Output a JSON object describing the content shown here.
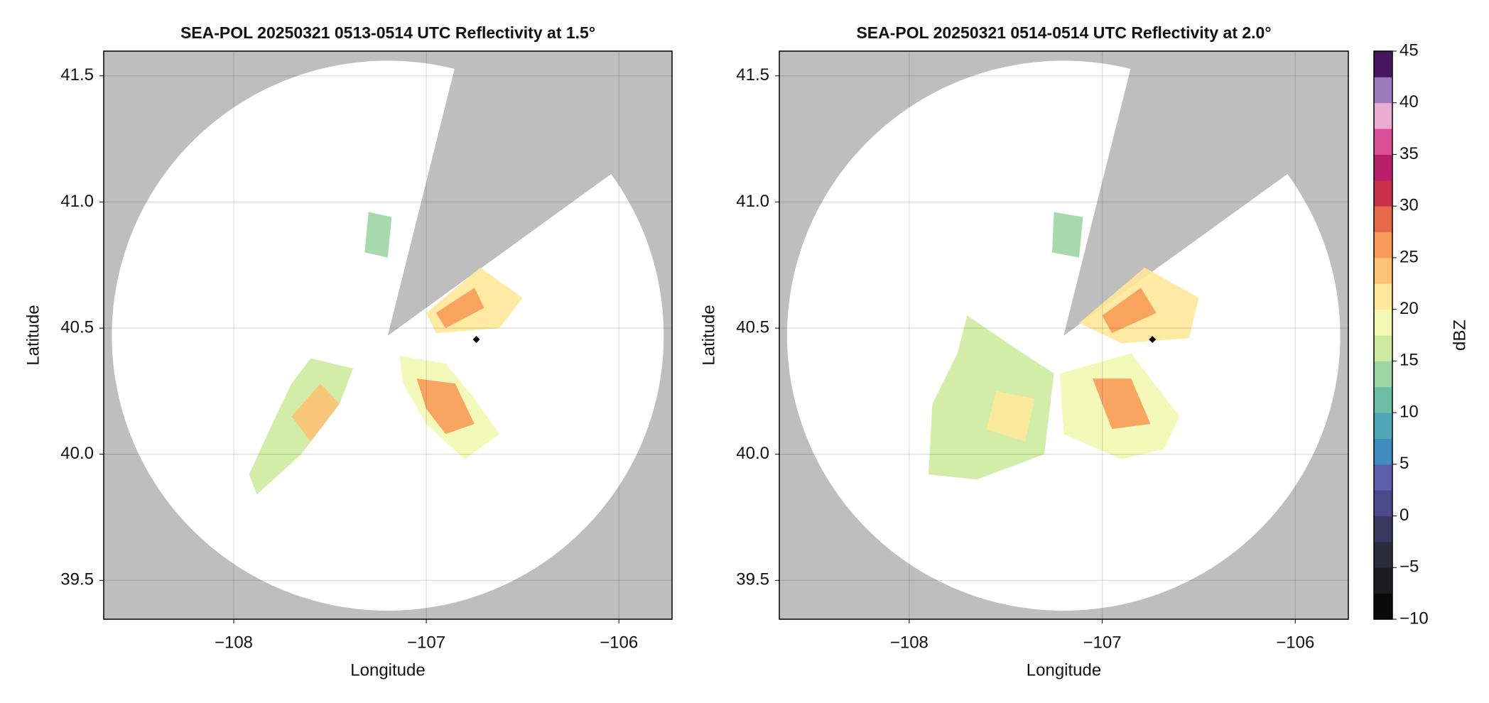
{
  "chart_data": [
    {
      "type": "radar",
      "title": "SEA-POL 20250321 0513-0514 UTC Reflectivity at 1.5°",
      "xlabel": "Longitude",
      "ylabel": "Latitude",
      "xlim": [
        -108.675,
        -105.724
      ],
      "ylim": [
        39.346,
        41.598
      ],
      "xticks": [
        {
          "value": -108,
          "label": "−108"
        },
        {
          "value": -107,
          "label": "−107"
        },
        {
          "value": -106,
          "label": "−106"
        }
      ],
      "yticks": [
        39.5,
        {
          "value": 40,
          "label": "40.0"
        },
        40.5,
        {
          "value": 41,
          "label": "41.0"
        },
        41.5
      ],
      "grid": true,
      "background": "#bebebe",
      "radar": {
        "lon": -107.2,
        "lat": 40.47,
        "range_km": 121,
        "blocked_azimuth": [
          14,
          54
        ]
      },
      "marker": {
        "lon": -106.74,
        "lat": 40.455,
        "color": "#000000"
      },
      "echoes": [
        {
          "lon": [
            -107.0,
            -106.72,
            -106.5,
            -106.62,
            -106.95
          ],
          "lat": [
            40.56,
            40.74,
            40.62,
            40.5,
            40.48
          ],
          "dbz": 20
        },
        {
          "lon": [
            -106.95,
            -106.75,
            -106.7,
            -106.9
          ],
          "lat": [
            40.56,
            40.66,
            40.58,
            40.5
          ],
          "dbz": 25
        },
        {
          "lon": [
            -107.14,
            -106.9,
            -106.75,
            -106.62,
            -106.8,
            -107.0,
            -107.12
          ],
          "lat": [
            40.39,
            40.36,
            40.22,
            40.08,
            39.98,
            40.12,
            40.28
          ],
          "dbz": 19
        },
        {
          "lon": [
            -107.05,
            -106.85,
            -106.75,
            -106.9,
            -107.0
          ],
          "lat": [
            40.3,
            40.28,
            40.12,
            40.08,
            40.18
          ],
          "dbz": 25
        },
        {
          "lon": [
            -107.6,
            -107.38,
            -107.45,
            -107.65,
            -107.88,
            -107.92,
            -107.8,
            -107.7
          ],
          "lat": [
            40.38,
            40.34,
            40.2,
            40.0,
            39.84,
            39.92,
            40.12,
            40.28
          ],
          "dbz": 16
        },
        {
          "lon": [
            -107.55,
            -107.45,
            -107.6,
            -107.7
          ],
          "lat": [
            40.28,
            40.2,
            40.05,
            40.15
          ],
          "dbz": 23
        },
        {
          "lon": [
            -107.3,
            -107.18,
            -107.2,
            -107.32
          ],
          "lat": [
            40.96,
            40.94,
            40.78,
            40.8
          ],
          "dbz": 13
        }
      ]
    },
    {
      "type": "radar",
      "title": "SEA-POL 20250321 0514-0514 UTC Reflectivity at 2.0°",
      "xlabel": "Longitude",
      "ylabel": "Latitude",
      "xlim": [
        -108.673,
        -105.725
      ],
      "ylim": [
        39.346,
        41.598
      ],
      "xticks": [
        {
          "value": -108,
          "label": "−108"
        },
        {
          "value": -107,
          "label": "−107"
        },
        {
          "value": -106,
          "label": "−106"
        }
      ],
      "yticks": [
        39.5,
        {
          "value": 40,
          "label": "40.0"
        },
        40.5,
        {
          "value": 41,
          "label": "41.0"
        },
        41.5
      ],
      "grid": true,
      "background": "#bebebe",
      "radar": {
        "lon": -107.2,
        "lat": 40.47,
        "range_km": 121,
        "blocked_azimuth": [
          14,
          54
        ]
      },
      "marker": {
        "lon": -106.74,
        "lat": 40.455,
        "color": "#000000"
      },
      "echoes": [
        {
          "lon": [
            -107.12,
            -106.78,
            -106.5,
            -106.55,
            -106.9
          ],
          "lat": [
            40.52,
            40.74,
            40.62,
            40.46,
            40.44
          ],
          "dbz": 20
        },
        {
          "lon": [
            -107.0,
            -106.8,
            -106.72,
            -106.95
          ],
          "lat": [
            40.55,
            40.66,
            40.56,
            40.48
          ],
          "dbz": 25
        },
        {
          "lon": [
            -107.22,
            -106.85,
            -106.6,
            -106.68,
            -106.9,
            -107.2
          ],
          "lat": [
            40.32,
            40.4,
            40.15,
            40.02,
            39.98,
            40.08
          ],
          "dbz": 19
        },
        {
          "lon": [
            -107.05,
            -106.85,
            -106.75,
            -106.95
          ],
          "lat": [
            40.3,
            40.3,
            40.12,
            40.1
          ],
          "dbz": 25
        },
        {
          "lon": [
            -107.7,
            -107.45,
            -107.25,
            -107.3,
            -107.65,
            -107.9,
            -107.88,
            -107.75
          ],
          "lat": [
            40.55,
            40.42,
            40.32,
            40.0,
            39.9,
            39.92,
            40.2,
            40.4
          ],
          "dbz": 15
        },
        {
          "lon": [
            -107.55,
            -107.35,
            -107.4,
            -107.6
          ],
          "lat": [
            40.25,
            40.22,
            40.05,
            40.1
          ],
          "dbz": 22
        },
        {
          "lon": [
            -107.25,
            -107.1,
            -107.12,
            -107.26
          ],
          "lat": [
            40.96,
            40.94,
            40.78,
            40.8
          ],
          "dbz": 13
        }
      ]
    }
  ],
  "colorbar": {
    "label": "dBZ",
    "lim": [
      -10,
      45
    ],
    "levels": [
      -10,
      -7.5,
      -5,
      -2.5,
      0,
      2.5,
      5,
      7.5,
      10,
      12.5,
      15,
      17.5,
      20,
      22.5,
      25,
      27.5,
      30,
      32.5,
      35,
      37.5,
      40,
      42.5,
      45
    ],
    "colors": [
      "#0a0a0a",
      "#1c1c22",
      "#2b2b3c",
      "#3a3860",
      "#4b4a8c",
      "#5a5fae",
      "#3f8cbf",
      "#4fa6b5",
      "#6cbfa5",
      "#9dd5a3",
      "#cdeb9e",
      "#f2f8b0",
      "#fee899",
      "#fdc273",
      "#f79b57",
      "#e8684a",
      "#c9304a",
      "#b81e6a",
      "#dc4f98",
      "#ebaad1",
      "#9e7bbf",
      "#4a1560"
    ],
    "ticks": [
      {
        "value": -10,
        "label": "−10"
      },
      {
        "value": -5,
        "label": "−5"
      },
      0,
      5,
      10,
      15,
      20,
      25,
      30,
      35,
      40,
      45
    ]
  }
}
